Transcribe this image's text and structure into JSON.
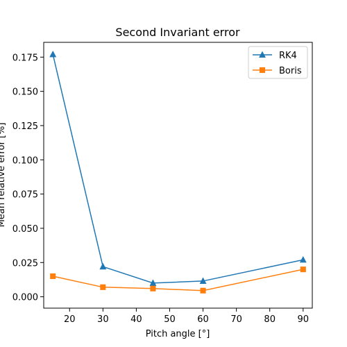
{
  "chart_data": {
    "type": "line",
    "title": "Second Invariant error",
    "xlabel": "Pitch angle [°]",
    "ylabel": "Mean relative error [%]",
    "xlim": [
      12.25,
      92.75
    ],
    "ylim": [
      -0.0083,
      0.1858
    ],
    "x_ticks": [
      20,
      30,
      40,
      50,
      60,
      70,
      80,
      90
    ],
    "y_ticks": [
      0.0,
      0.025,
      0.05,
      0.075,
      0.1,
      0.125,
      0.15,
      0.175
    ],
    "y_tick_labels": [
      "0.000",
      "0.025",
      "0.050",
      "0.075",
      "0.100",
      "0.125",
      "0.150",
      "0.175"
    ],
    "grid": false,
    "legend_position": "top-right",
    "x": [
      15,
      30,
      45,
      60,
      90
    ],
    "series": [
      {
        "name": "RK4",
        "marker": "triangle",
        "color": "#1f77b4",
        "values": [
          0.177,
          0.022,
          0.01,
          0.0115,
          0.027
        ]
      },
      {
        "name": "Boris",
        "marker": "square",
        "color": "#ff7f0e",
        "values": [
          0.015,
          0.007,
          0.006,
          0.0045,
          0.02
        ]
      }
    ]
  }
}
